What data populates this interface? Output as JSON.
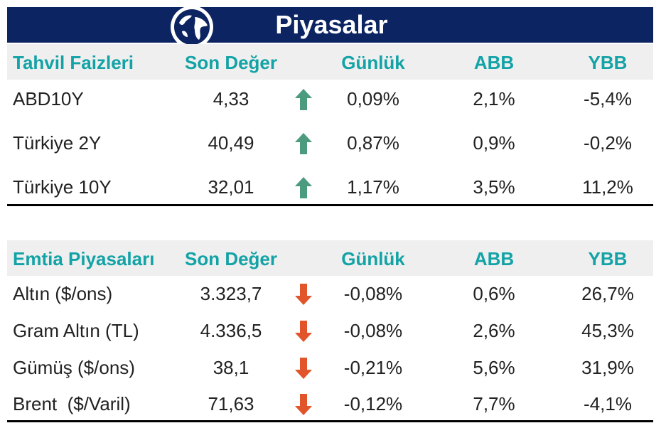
{
  "title": "Piyasalar",
  "colors": {
    "title_bg": "#0c2461",
    "header_bg": "#efefef",
    "header_text": "#13a3a6",
    "up": "#4d9b7e",
    "down": "#e2542a"
  },
  "bonds": {
    "header": {
      "name": "Tahvil Faizleri",
      "value": "Son Değer",
      "daily": "Günlük",
      "abb": "ABB",
      "ybb": "YBB"
    },
    "rows": [
      {
        "name": "ABD10Y",
        "value": "4,33",
        "trend": "up",
        "daily": "0,09%",
        "abb": "2,1%",
        "ybb": "-5,4%"
      },
      {
        "name": "Türkiye 2Y",
        "value": "40,49",
        "trend": "up",
        "daily": "0,87%",
        "abb": "0,9%",
        "ybb": "-0,2%"
      },
      {
        "name": "Türkiye 10Y",
        "value": "32,01",
        "trend": "up",
        "daily": "1,17%",
        "abb": "3,5%",
        "ybb": "11,2%"
      }
    ]
  },
  "commodities": {
    "header": {
      "name": "Emtia Piyasaları",
      "value": "Son Değer",
      "daily": "Günlük",
      "abb": "ABB",
      "ybb": "YBB"
    },
    "rows": [
      {
        "name": "Altın ($/ons)",
        "value": "3.323,7",
        "trend": "down",
        "daily": "-0,08%",
        "abb": "0,6%",
        "ybb": "26,7%"
      },
      {
        "name": "Gram Altın (TL)",
        "value": "4.336,5",
        "trend": "down",
        "daily": "-0,08%",
        "abb": "2,6%",
        "ybb": "45,3%"
      },
      {
        "name": "Gümüş ($/ons)",
        "value": "38,1",
        "trend": "down",
        "daily": "-0,21%",
        "abb": "5,6%",
        "ybb": "31,9%"
      },
      {
        "name": "Brent  ($/Varil)",
        "value": "71,63",
        "trend": "down",
        "daily": "-0,12%",
        "abb": "7,7%",
        "ybb": "-4,1%"
      }
    ]
  }
}
